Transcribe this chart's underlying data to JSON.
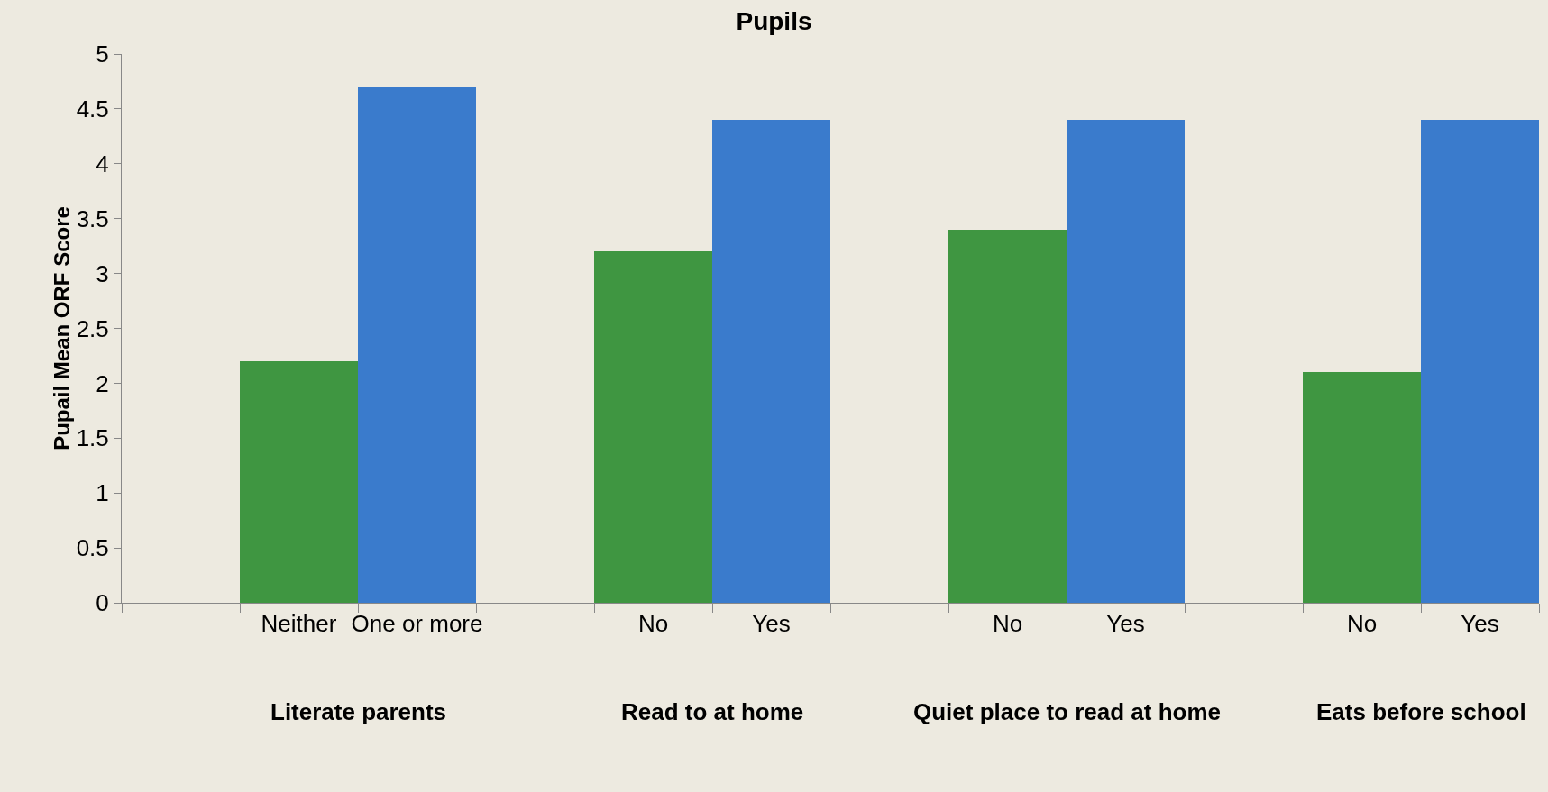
{
  "chart_data": {
    "type": "bar",
    "title": "Pupils",
    "ylabel": "Pupail Mean ORF Score",
    "categories": [
      null,
      "Neither",
      "One or more",
      null,
      "No",
      "Yes",
      null,
      "No",
      "Yes",
      null,
      "No",
      "Yes"
    ],
    "values": [
      null,
      2.2,
      4.7,
      null,
      3.2,
      4.4,
      null,
      3.4,
      4.4,
      null,
      2.1,
      4.4
    ],
    "colors": [
      "#3f9641",
      "#3f9641",
      "#3a7bcc",
      "#3f9641",
      "#3f9641",
      "#3a7bcc",
      "#3f9641",
      "#3f9641",
      "#3a7bcc",
      "#3f9641",
      "#3f9641",
      "#3a7bcc"
    ],
    "annotations": [
      "Literate parents",
      "Read to at home",
      "Quiet place to read at home",
      "Eats before school"
    ],
    "ylim": [
      0,
      5
    ],
    "yticks": [
      0,
      0.5,
      1,
      1.5,
      2,
      2.5,
      3,
      3.5,
      4,
      4.5,
      5
    ],
    "grid": false
  }
}
